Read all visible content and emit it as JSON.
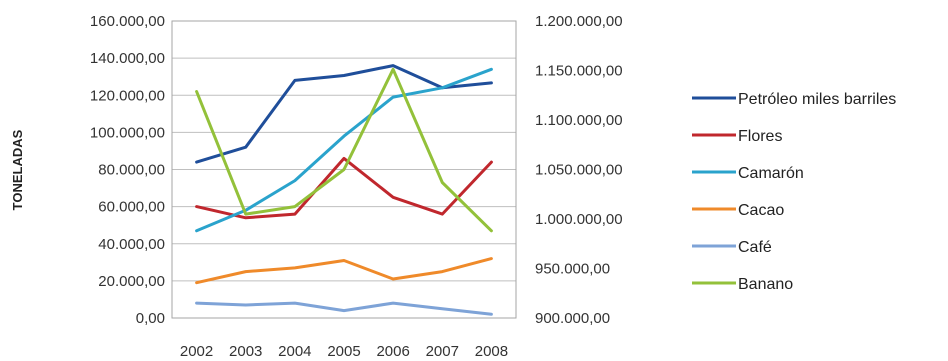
{
  "chart_data": {
    "type": "line",
    "ylabel": "TONELADAS",
    "x": [
      "2002",
      "2003",
      "2004",
      "2005",
      "2006",
      "2007",
      "2008"
    ],
    "y_left": {
      "range": [
        0,
        160000
      ],
      "ticks": [
        0,
        20000,
        40000,
        60000,
        80000,
        100000,
        120000,
        140000,
        160000
      ],
      "tick_labels": [
        "0,00",
        "20.000,00",
        "40.000,00",
        "60.000,00",
        "80.000,00",
        "100.000,00",
        "120.000,00",
        "140.000,00",
        "160.000,00"
      ]
    },
    "y_right": {
      "range": [
        900000,
        1200000
      ],
      "ticks": [
        900000,
        950000,
        1000000,
        1050000,
        1100000,
        1150000,
        1200000
      ],
      "tick_labels": [
        "900.000,00",
        "950.000,00",
        "1.000.000,00",
        "1.050.000,00",
        "1.100.000,00",
        "1.150.000,00",
        "1.200.000,00"
      ]
    },
    "grid": true,
    "legend_position": "right",
    "series": [
      {
        "name": "Petróleo miles barriles",
        "axis": "right",
        "color": "#1f4e9a",
        "values": [
          1057500,
          1072500,
          1140000,
          1145000,
          1155000,
          1132500,
          1137500
        ]
      },
      {
        "name": "Flores",
        "axis": "left",
        "color": "#c0272d",
        "values": [
          60000,
          54000,
          56000,
          86000,
          65000,
          56000,
          84000
        ]
      },
      {
        "name": "Camarón",
        "axis": "left",
        "color": "#2aa3cc",
        "values": [
          47000,
          58000,
          74000,
          98000,
          119000,
          124000,
          134000
        ]
      },
      {
        "name": "Cacao",
        "axis": "left",
        "color": "#ef8a2a",
        "values": [
          19000,
          25000,
          27000,
          31000,
          21000,
          25000,
          32000
        ]
      },
      {
        "name": "Café",
        "axis": "left",
        "color": "#7ea3d7",
        "values": [
          8000,
          7000,
          8000,
          4000,
          8000,
          5000,
          2000
        ]
      },
      {
        "name": "Banano",
        "axis": "left",
        "color": "#93c13a",
        "values": [
          122000,
          56000,
          60000,
          80000,
          134000,
          73000,
          47000
        ]
      }
    ]
  }
}
